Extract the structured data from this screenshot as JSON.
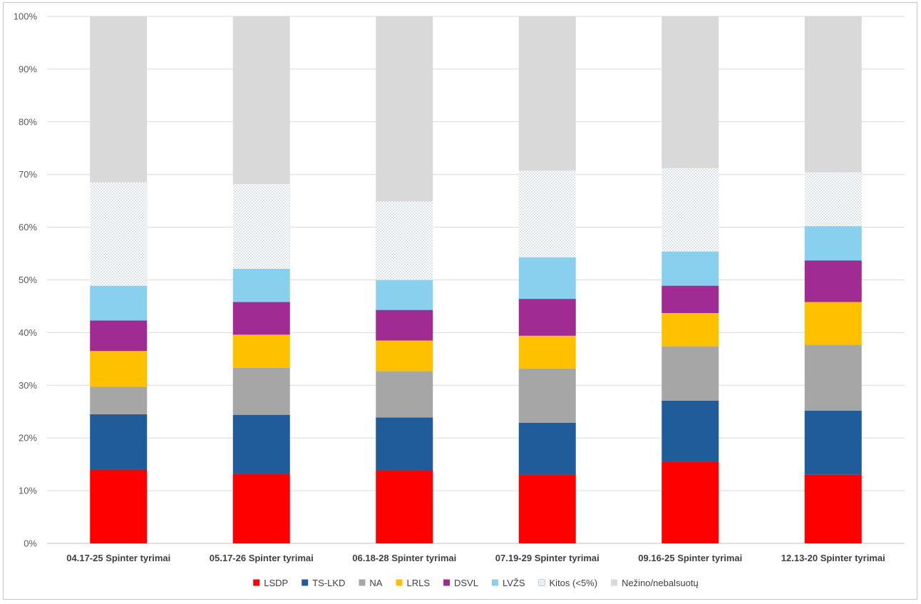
{
  "chart_data": {
    "type": "bar",
    "stacked": "percent",
    "categories": [
      "04.17-25 Spinter tyrimai",
      "05.17-26 Spinter tyrimai",
      "06.18-28 Spinter tyrimai",
      "07.19-29 Spinter tyrimai",
      "09.16-25 Spinter tyrimai",
      "12.13-20 Spinter tyrimai"
    ],
    "ylim": [
      0,
      100
    ],
    "yticks": [
      "0%",
      "10%",
      "20%",
      "30%",
      "40%",
      "50%",
      "60%",
      "70%",
      "80%",
      "90%",
      "100%"
    ],
    "grid": true,
    "legend_position": "bottom",
    "series": [
      {
        "name": "LSDP",
        "color": "#ff0000",
        "values": [
          14.0,
          13.2,
          13.8,
          13.0,
          15.5,
          13.1
        ]
      },
      {
        "name": "TS-LKD",
        "color": "#1f5c99",
        "values": [
          10.5,
          11.2,
          10.1,
          9.9,
          11.6,
          12.1
        ]
      },
      {
        "name": "NA",
        "color": "#a6a6a6",
        "values": [
          5.2,
          8.9,
          8.8,
          10.3,
          10.3,
          12.5
        ]
      },
      {
        "name": "LRLS",
        "color": "#ffc000",
        "values": [
          6.8,
          6.3,
          5.8,
          6.2,
          6.3,
          8.1
        ]
      },
      {
        "name": "DSVL",
        "color": "#a02b93",
        "values": [
          5.8,
          6.2,
          5.8,
          7.0,
          5.2,
          7.9
        ]
      },
      {
        "name": "LVŽS",
        "color": "#89cfee",
        "values": [
          6.6,
          6.3,
          5.7,
          7.9,
          6.5,
          6.5
        ]
      },
      {
        "name": "Kitos (<5%)",
        "color": "#9fb4cc",
        "pattern": "dotted",
        "values": [
          19.6,
          16.1,
          14.9,
          16.4,
          15.8,
          10.2
        ]
      },
      {
        "name": "Nežino/nebalsuotų",
        "color": "#d9d9d9",
        "values": [
          31.5,
          31.8,
          35.1,
          29.3,
          28.8,
          29.6
        ]
      }
    ]
  }
}
